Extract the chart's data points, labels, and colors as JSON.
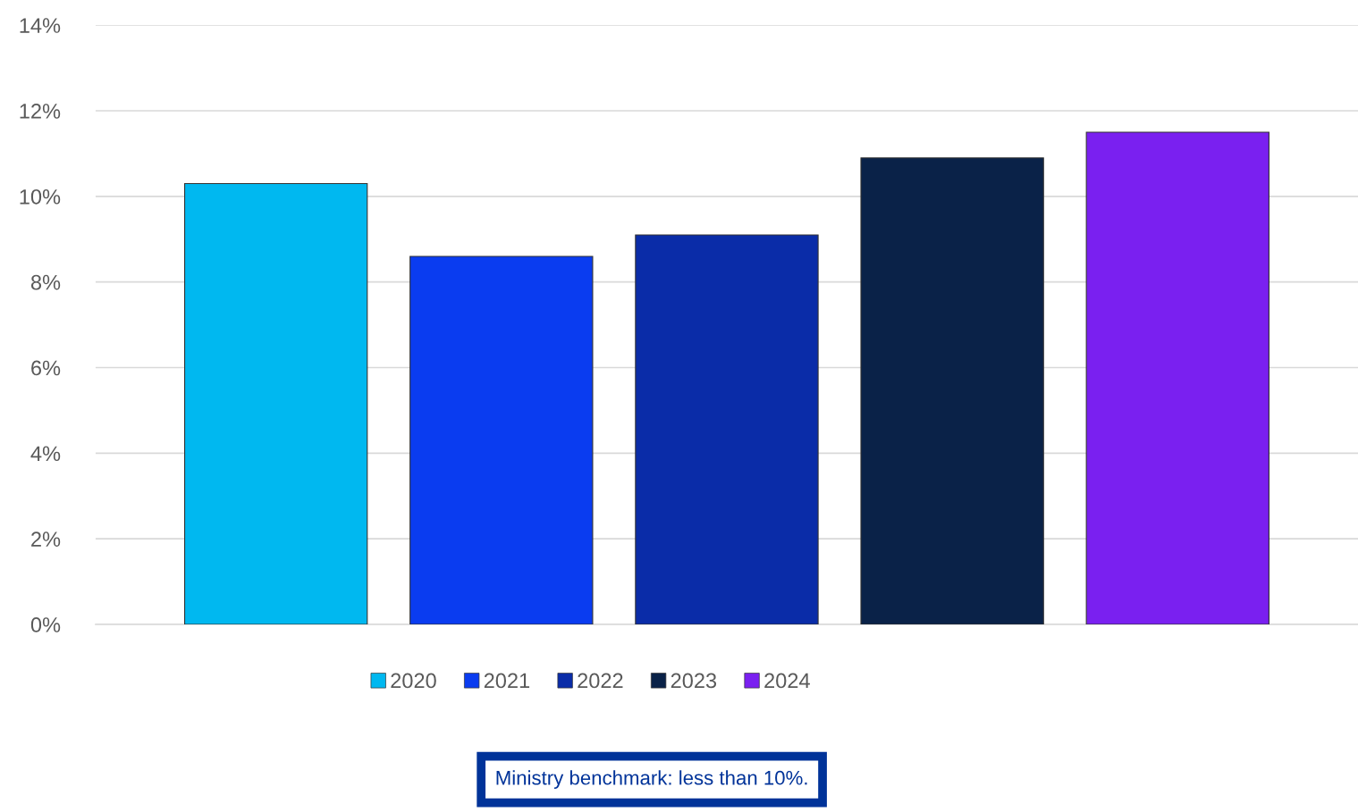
{
  "chart_data": {
    "type": "bar",
    "categories": [
      null
    ],
    "series": [
      {
        "name": "2020",
        "color": "#00b8f0",
        "values": [
          10.3
        ]
      },
      {
        "name": "2021",
        "color": "#0a3cf0",
        "values": [
          8.6
        ]
      },
      {
        "name": "2022",
        "color": "#0a2ca8",
        "values": [
          9.1
        ]
      },
      {
        "name": "2023",
        "color": "#0a2248",
        "values": [
          10.9
        ]
      },
      {
        "name": "2024",
        "color": "#7a20f0",
        "values": [
          11.5
        ]
      }
    ],
    "ylim": [
      0,
      14
    ],
    "yticks": [
      {
        "value": 0,
        "label": "0%"
      },
      {
        "value": 2,
        "label": "2%"
      },
      {
        "value": 4,
        "label": "4%"
      },
      {
        "value": 6,
        "label": "6%"
      },
      {
        "value": 8,
        "label": "8%"
      },
      {
        "value": 10,
        "label": "10%"
      },
      {
        "value": 12,
        "label": "12%"
      },
      {
        "value": 14,
        "label": "14%"
      }
    ],
    "grid": "y",
    "legend": "bottom",
    "annotations": [
      "Ministry benchmark: less than 10%."
    ]
  }
}
